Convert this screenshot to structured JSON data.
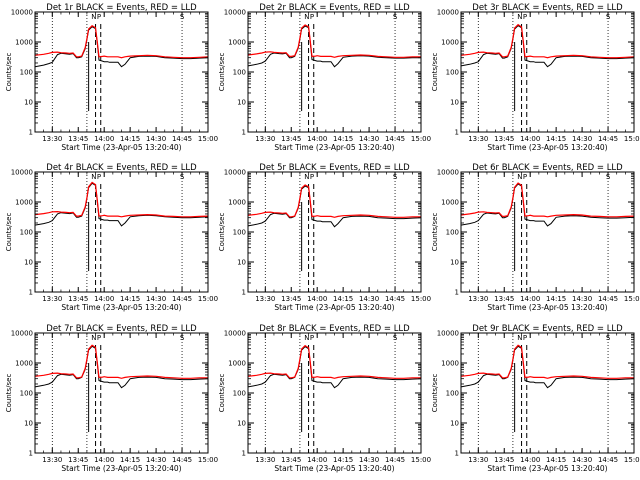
{
  "chart_data": {
    "type": "line",
    "panel_layout": "3x3 grid",
    "y_scale": "log",
    "ylim": [
      1,
      10000
    ],
    "ylabel": "Counts/sec",
    "xlabel": "Start Time (23-Apr-05 13:20:40)",
    "x_tick_labels": [
      "13:30",
      "13:45",
      "14:00",
      "14:15",
      "14:30",
      "14:45",
      "15:00"
    ],
    "y_tick_labels": [
      "1",
      "10",
      "100",
      "1000",
      "10000"
    ],
    "series_colors": {
      "events": "#000000",
      "lld": "#ff0000"
    },
    "reference_lines": {
      "dotted_times": [
        "13:30",
        "13:50",
        "14:45"
      ],
      "dashed_times": [
        "13:55",
        "13:58"
      ]
    },
    "x": [
      "13:20",
      "13:25",
      "13:28",
      "13:30",
      "13:33",
      "13:35",
      "13:38",
      "13:40",
      "13:42",
      "13:44",
      "13:45",
      "13:47",
      "13:49",
      "13:50",
      "13:51",
      "13:53",
      "13:55",
      "13:56",
      "13:57",
      "13:59",
      "14:00",
      "14:02",
      "14:03",
      "14:05",
      "14:08",
      "14:10",
      "14:12",
      "14:15",
      "14:20",
      "14:25",
      "14:30",
      "14:35",
      "14:40",
      "14:45",
      "14:50",
      "14:55",
      "15:00"
    ],
    "panels": [
      {
        "title": "Det 1r BLACK = Events, RED = LLD",
        "top_markers": [
          "N",
          "P",
          "S"
        ],
        "series": [
          {
            "values": [
              150,
              170,
              190,
              210,
              380,
              420,
              400,
              390,
              410,
              300,
              300,
              320,
              600,
              1200,
              2500,
              3200,
              2800,
              900,
              250,
              230,
              220,
              220,
              210,
              210,
              210,
              150,
              180,
              300,
              330,
              340,
              330,
              300,
              290,
              280,
              280,
              290,
              300
            ]
          },
          {
            "values": [
              360,
              390,
              420,
              450,
              460,
              440,
              430,
              420,
              430,
              320,
              320,
              340,
              650,
              1300,
              2700,
              3500,
              3000,
              1000,
              320,
              330,
              340,
              320,
              320,
              320,
              320,
              300,
              320,
              340,
              350,
              360,
              350,
              320,
              310,
              300,
              300,
              310,
              320
            ]
          }
        ]
      },
      {
        "title": "Det 2r BLACK = Events, RED = LLD",
        "top_markers": [
          "N",
          "P",
          "S"
        ],
        "series": [
          {
            "values": [
              160,
              180,
              200,
              230,
              390,
              430,
              410,
              400,
              420,
              300,
              300,
              330,
              620,
              1250,
              2700,
              3400,
              3000,
              950,
              260,
              240,
              230,
              230,
              220,
              220,
              220,
              150,
              190,
              310,
              340,
              350,
              340,
              310,
              300,
              290,
              290,
              300,
              300
            ]
          },
          {
            "values": [
              370,
              400,
              430,
              460,
              470,
              450,
              440,
              430,
              440,
              330,
              330,
              350,
              670,
              1350,
              2900,
              3700,
              3200,
              1050,
              330,
              340,
              350,
              330,
              330,
              330,
              330,
              310,
              330,
              350,
              360,
              370,
              360,
              330,
              320,
              310,
              310,
              320,
              320
            ]
          }
        ]
      },
      {
        "title": "Det 3r BLACK = Events, RED = LLD",
        "top_markers": [
          "N",
          "P",
          "S"
        ],
        "series": [
          {
            "values": [
              160,
              180,
              200,
              220,
              380,
              420,
              400,
              390,
              410,
              290,
              290,
              320,
              610,
              1250,
              2700,
              3500,
              3000,
              950,
              250,
              230,
              220,
              220,
              210,
              210,
              210,
              150,
              180,
              300,
              330,
              340,
              330,
              300,
              290,
              280,
              280,
              290,
              300
            ]
          },
          {
            "values": [
              360,
              390,
              420,
              450,
              460,
              440,
              430,
              420,
              430,
              320,
              320,
              340,
              660,
              1350,
              2900,
              3800,
              3200,
              1050,
              320,
              330,
              340,
              320,
              320,
              320,
              320,
              300,
              320,
              340,
              350,
              360,
              350,
              320,
              310,
              300,
              300,
              310,
              320
            ]
          }
        ]
      },
      {
        "title": "Det 4r BLACK = Events, RED = LLD",
        "top_markers": [
          "N",
          "P",
          "S"
        ],
        "series": [
          {
            "values": [
              170,
              190,
              210,
              240,
              400,
              440,
              420,
              410,
              430,
              310,
              310,
              340,
              640,
              1300,
              3000,
              4200,
              3600,
              1050,
              280,
              260,
              250,
              250,
              240,
              240,
              240,
              160,
              200,
              320,
              350,
              360,
              350,
              320,
              310,
              300,
              300,
              310,
              320
            ]
          },
          {
            "values": [
              380,
              410,
              440,
              470,
              480,
              460,
              450,
              440,
              450,
              340,
              340,
              360,
              690,
              1400,
              3200,
              4500,
              3800,
              1150,
              340,
              350,
              360,
              340,
              340,
              340,
              340,
              320,
              340,
              360,
              370,
              380,
              370,
              340,
              330,
              320,
              320,
              330,
              340
            ]
          }
        ]
      },
      {
        "title": "Det 5r BLACK = Events, RED = LLD",
        "top_markers": [
          "N",
          "P",
          "S"
        ],
        "series": [
          {
            "values": [
              160,
              180,
              200,
              230,
              380,
              420,
              400,
              390,
              410,
              300,
              300,
              330,
              620,
              1250,
              2700,
              3400,
              3000,
              950,
              260,
              240,
              230,
              230,
              220,
              220,
              220,
              150,
              190,
              300,
              330,
              340,
              330,
              300,
              290,
              280,
              280,
              290,
              300
            ]
          },
          {
            "values": [
              360,
              390,
              420,
              450,
              460,
              440,
              430,
              420,
              430,
              320,
              320,
              340,
              660,
              1350,
              2900,
              3700,
              3200,
              1050,
              330,
              340,
              350,
              330,
              330,
              330,
              330,
              310,
              330,
              350,
              360,
              370,
              360,
              330,
              320,
              310,
              310,
              320,
              320
            ]
          }
        ]
      },
      {
        "title": "Det 6r BLACK = Events, RED = LLD",
        "top_markers": [
          "N",
          "P",
          "S"
        ],
        "series": [
          {
            "values": [
              170,
              190,
              210,
              240,
              390,
              430,
              410,
              400,
              420,
              300,
              300,
              330,
              630,
              1300,
              2900,
              4000,
              3400,
              1000,
              270,
              250,
              240,
              240,
              230,
              230,
              230,
              160,
              190,
              310,
              340,
              350,
              340,
              310,
              300,
              290,
              290,
              300,
              310
            ]
          },
          {
            "values": [
              370,
              400,
              430,
              460,
              470,
              450,
              440,
              430,
              440,
              330,
              330,
              350,
              680,
              1400,
              3100,
              4300,
              3600,
              1100,
              340,
              350,
              360,
              340,
              340,
              340,
              340,
              320,
              340,
              360,
              370,
              380,
              370,
              340,
              330,
              320,
              320,
              330,
              340
            ]
          }
        ]
      },
      {
        "title": "Det 7r BLACK = Events, RED = LLD",
        "top_markers": [
          "N",
          "P",
          "S"
        ],
        "series": [
          {
            "values": [
              160,
              180,
              200,
              230,
              380,
              420,
              400,
              390,
              410,
              300,
              300,
              330,
              610,
              1250,
              2700,
              3600,
              3100,
              950,
              260,
              240,
              230,
              230,
              220,
              220,
              220,
              150,
              180,
              300,
              330,
              340,
              330,
              300,
              290,
              280,
              280,
              290,
              300
            ]
          },
          {
            "values": [
              360,
              390,
              420,
              450,
              460,
              440,
              430,
              420,
              430,
              320,
              320,
              340,
              660,
              1350,
              2900,
              3900,
              3300,
              1050,
              330,
              340,
              350,
              330,
              330,
              330,
              330,
              310,
              330,
              350,
              360,
              370,
              360,
              330,
              320,
              310,
              310,
              320,
              320
            ]
          }
        ]
      },
      {
        "title": "Det 8r BLACK = Events, RED = LLD",
        "top_markers": [
          "N",
          "P",
          "S"
        ],
        "series": [
          {
            "values": [
              160,
              180,
              200,
              230,
              380,
              420,
              400,
              390,
              410,
              300,
              300,
              330,
              610,
              1250,
              2700,
              3500,
              3000,
              950,
              260,
              240,
              230,
              230,
              220,
              220,
              220,
              150,
              180,
              300,
              330,
              340,
              330,
              300,
              290,
              280,
              280,
              290,
              300
            ]
          },
          {
            "values": [
              360,
              390,
              420,
              450,
              460,
              440,
              430,
              420,
              430,
              320,
              320,
              340,
              660,
              1350,
              2900,
              3800,
              3200,
              1050,
              330,
              340,
              350,
              330,
              330,
              330,
              330,
              310,
              330,
              350,
              360,
              370,
              360,
              330,
              320,
              310,
              310,
              320,
              320
            ]
          }
        ]
      },
      {
        "title": "Det 9r BLACK = Events, RED = LLD",
        "top_markers": [
          "N",
          "P",
          "S"
        ],
        "series": [
          {
            "values": [
              160,
              180,
              200,
              230,
              380,
              420,
              400,
              390,
              410,
              300,
              300,
              330,
              610,
              1250,
              2700,
              3600,
              3100,
              950,
              260,
              240,
              230,
              230,
              220,
              220,
              220,
              150,
              180,
              300,
              330,
              340,
              330,
              300,
              290,
              280,
              280,
              290,
              300
            ]
          },
          {
            "values": [
              360,
              390,
              420,
              450,
              460,
              440,
              430,
              420,
              430,
              320,
              320,
              340,
              660,
              1350,
              2900,
              3900,
              3300,
              1050,
              330,
              340,
              350,
              330,
              330,
              330,
              330,
              310,
              330,
              350,
              360,
              370,
              360,
              330,
              320,
              310,
              310,
              320,
              320
            ]
          }
        ]
      }
    ]
  }
}
